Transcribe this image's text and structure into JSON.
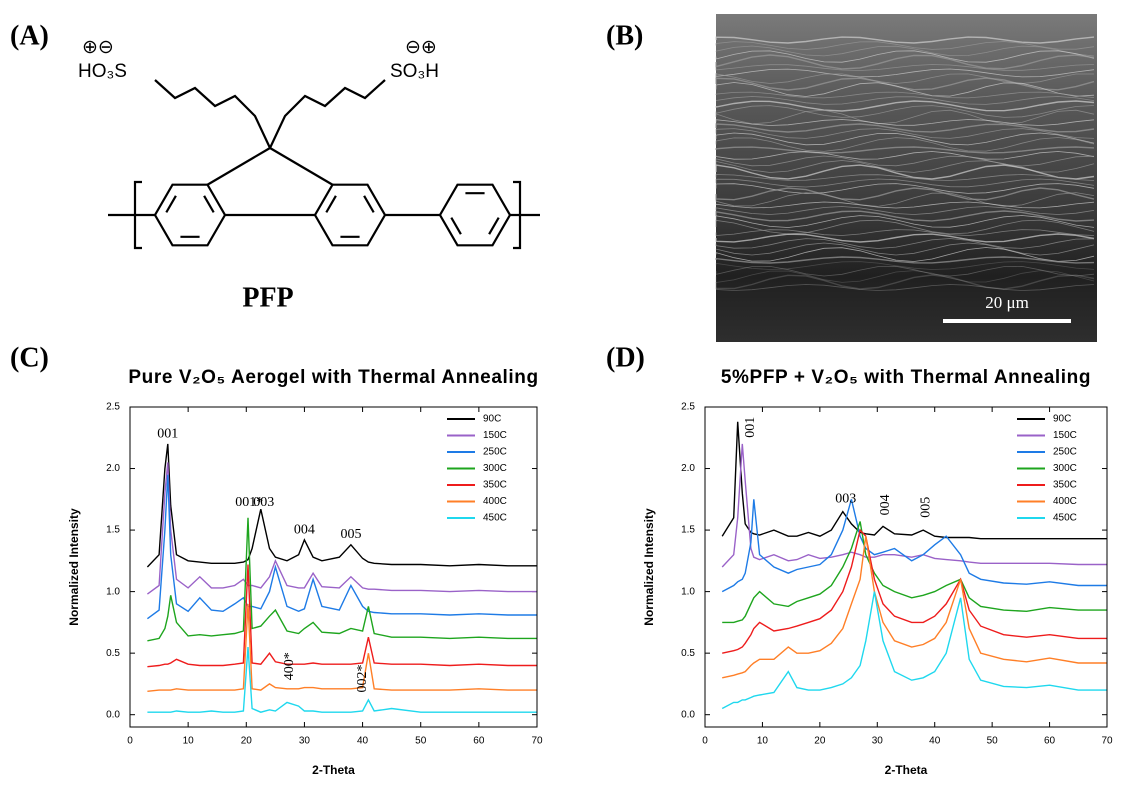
{
  "labels": {
    "a": "(A)",
    "b": "(B)",
    "c": "(C)",
    "d": "(D)"
  },
  "structure": {
    "left_charges": "⊕⊖",
    "left_group": "HO₃S",
    "right_charges": "⊖⊕",
    "right_group": "SO₃H",
    "name": "PFP"
  },
  "micrograph": {
    "scale_bar": "20 μm"
  },
  "chart_data": [
    {
      "type": "line",
      "title": "Pure V₂O₅ Aerogel with Thermal Annealing",
      "x_label": "2-Theta",
      "y_label": "Normalized Intensity",
      "x": [
        3,
        5,
        6,
        6.5,
        7,
        8,
        10,
        12,
        14,
        16,
        18,
        19.5,
        20.3,
        21,
        22.5,
        24,
        25,
        27,
        29,
        30,
        31.5,
        33,
        36,
        38,
        40,
        41,
        42,
        45,
        50,
        55,
        60,
        65,
        70
      ],
      "series": [
        {
          "name": "90C",
          "color": "#000000",
          "values": [
            1.2,
            1.3,
            2.0,
            2.2,
            1.7,
            1.3,
            1.25,
            1.24,
            1.23,
            1.23,
            1.23,
            1.24,
            1.26,
            1.35,
            1.67,
            1.35,
            1.28,
            1.25,
            1.3,
            1.42,
            1.28,
            1.25,
            1.28,
            1.38,
            1.27,
            1.24,
            1.23,
            1.22,
            1.22,
            1.21,
            1.22,
            1.21,
            1.21
          ]
        },
        {
          "name": "150C",
          "color": "#9a62c8",
          "values": [
            0.98,
            1.05,
            1.8,
            2.05,
            1.5,
            1.1,
            1.03,
            1.12,
            1.03,
            1.03,
            1.05,
            1.1,
            1.05,
            1.05,
            1.03,
            1.12,
            1.25,
            1.05,
            1.03,
            1.03,
            1.15,
            1.04,
            1.03,
            1.12,
            1.03,
            1.02,
            1.02,
            1.01,
            1.01,
            1.0,
            1.01,
            1.0,
            1.0
          ]
        },
        {
          "name": "250C",
          "color": "#1e7be6",
          "values": [
            0.78,
            0.85,
            1.5,
            1.95,
            1.3,
            0.9,
            0.84,
            0.95,
            0.85,
            0.84,
            0.9,
            0.95,
            0.88,
            0.88,
            0.86,
            1.0,
            1.2,
            0.88,
            0.84,
            0.86,
            1.1,
            0.88,
            0.85,
            1.05,
            0.88,
            0.84,
            0.83,
            0.82,
            0.82,
            0.81,
            0.82,
            0.81,
            0.81
          ]
        },
        {
          "name": "300C",
          "color": "#1ea51e",
          "values": [
            0.6,
            0.62,
            0.7,
            0.8,
            0.97,
            0.75,
            0.64,
            0.65,
            0.64,
            0.65,
            0.66,
            0.68,
            1.6,
            0.7,
            0.72,
            0.8,
            0.85,
            0.68,
            0.66,
            0.7,
            0.75,
            0.67,
            0.66,
            0.7,
            0.68,
            0.88,
            0.66,
            0.63,
            0.63,
            0.62,
            0.63,
            0.62,
            0.62
          ]
        },
        {
          "name": "350C",
          "color": "#ee1c1c",
          "values": [
            0.39,
            0.4,
            0.41,
            0.41,
            0.42,
            0.45,
            0.41,
            0.4,
            0.4,
            0.4,
            0.41,
            0.42,
            1.22,
            0.42,
            0.41,
            0.5,
            0.43,
            0.41,
            0.41,
            0.41,
            0.42,
            0.41,
            0.41,
            0.41,
            0.42,
            0.63,
            0.42,
            0.41,
            0.41,
            0.4,
            0.41,
            0.4,
            0.4
          ]
        },
        {
          "name": "400C",
          "color": "#ff7f27",
          "values": [
            0.19,
            0.2,
            0.2,
            0.2,
            0.2,
            0.21,
            0.2,
            0.2,
            0.2,
            0.2,
            0.2,
            0.21,
            0.9,
            0.21,
            0.2,
            0.25,
            0.22,
            0.21,
            0.21,
            0.22,
            0.22,
            0.21,
            0.21,
            0.21,
            0.22,
            0.5,
            0.21,
            0.2,
            0.2,
            0.2,
            0.21,
            0.2,
            0.2
          ]
        },
        {
          "name": "450C",
          "color": "#1fd8ee",
          "values": [
            0.02,
            0.02,
            0.02,
            0.02,
            0.02,
            0.03,
            0.02,
            0.02,
            0.03,
            0.02,
            0.02,
            0.03,
            0.55,
            0.05,
            0.02,
            0.04,
            0.03,
            0.1,
            0.07,
            0.03,
            0.03,
            0.02,
            0.02,
            0.02,
            0.03,
            0.12,
            0.03,
            0.05,
            0.02,
            0.02,
            0.02,
            0.02,
            0.02
          ]
        }
      ],
      "xlim": [
        0,
        70
      ],
      "ylim": [
        -0.1,
        2.5
      ],
      "xticks": [
        0,
        10,
        20,
        30,
        40,
        50,
        60,
        70
      ],
      "yticks": [
        {
          "value": 0,
          "label": "0.0"
        },
        {
          "value": 0.5,
          "label": "0.5"
        },
        {
          "value": 1,
          "label": "1.0"
        },
        {
          "value": 1.5,
          "label": "1.5"
        },
        {
          "value": 2,
          "label": "2.0"
        },
        {
          "value": 2.5,
          "label": "2.5"
        }
      ],
      "legend": "upper right",
      "annotations": [
        {
          "text": "001",
          "x": 6.5,
          "y": 2.28
        },
        {
          "text": "001*",
          "x": 20.5,
          "y": 1.72
        },
        {
          "text": "003",
          "x": 23,
          "y": 1.72
        },
        {
          "text": "004",
          "x": 30,
          "y": 1.5
        },
        {
          "text": "005",
          "x": 38,
          "y": 1.46
        },
        {
          "text": "400*",
          "x": 27.5,
          "y": 0.28,
          "vertical": true
        },
        {
          "text": "002*",
          "x": 40,
          "y": 0.18,
          "vertical": true
        }
      ]
    },
    {
      "type": "line",
      "title": "5%PFP + V₂O₅ with Thermal Annealing",
      "x_label": "2-Theta",
      "y_label": "Normalized Intensity",
      "x": [
        3,
        5,
        5.7,
        6.5,
        7,
        8,
        8.5,
        9.5,
        12,
        14.5,
        16,
        18,
        20,
        22,
        24,
        25.5,
        27,
        28,
        29.5,
        31,
        33,
        36,
        38,
        40,
        42,
        44.5,
        46,
        48,
        52,
        56,
        60,
        65,
        70
      ],
      "series": [
        {
          "name": "90C",
          "color": "#000000",
          "values": [
            1.45,
            1.6,
            2.38,
            1.8,
            1.55,
            1.48,
            1.47,
            1.46,
            1.5,
            1.45,
            1.45,
            1.48,
            1.45,
            1.5,
            1.65,
            1.55,
            1.48,
            1.47,
            1.46,
            1.53,
            1.47,
            1.46,
            1.5,
            1.45,
            1.44,
            1.44,
            1.44,
            1.43,
            1.43,
            1.43,
            1.43,
            1.43,
            1.43
          ]
        },
        {
          "name": "150C",
          "color": "#9a62c8",
          "values": [
            1.2,
            1.3,
            1.6,
            2.2,
            1.9,
            1.35,
            1.28,
            1.26,
            1.3,
            1.25,
            1.26,
            1.3,
            1.27,
            1.28,
            1.3,
            1.32,
            1.3,
            1.28,
            1.28,
            1.3,
            1.3,
            1.28,
            1.3,
            1.27,
            1.26,
            1.25,
            1.24,
            1.23,
            1.23,
            1.23,
            1.23,
            1.22,
            1.22
          ]
        },
        {
          "name": "250C",
          "color": "#1e7be6",
          "values": [
            1.0,
            1.05,
            1.08,
            1.1,
            1.15,
            1.4,
            1.75,
            1.3,
            1.2,
            1.15,
            1.18,
            1.2,
            1.22,
            1.3,
            1.5,
            1.75,
            1.45,
            1.35,
            1.3,
            1.32,
            1.35,
            1.25,
            1.3,
            1.38,
            1.45,
            1.3,
            1.15,
            1.1,
            1.07,
            1.06,
            1.08,
            1.05,
            1.05
          ]
        },
        {
          "name": "300C",
          "color": "#1ea51e",
          "values": [
            0.75,
            0.75,
            0.76,
            0.77,
            0.8,
            0.9,
            0.95,
            1.0,
            0.9,
            0.88,
            0.92,
            0.95,
            0.98,
            1.05,
            1.2,
            1.35,
            1.57,
            1.3,
            1.15,
            1.05,
            1.0,
            0.95,
            0.97,
            1.0,
            1.05,
            1.1,
            0.95,
            0.88,
            0.85,
            0.84,
            0.87,
            0.85,
            0.85
          ]
        },
        {
          "name": "350C",
          "color": "#ee1c1c",
          "values": [
            0.5,
            0.52,
            0.53,
            0.55,
            0.58,
            0.65,
            0.7,
            0.75,
            0.68,
            0.7,
            0.72,
            0.75,
            0.78,
            0.85,
            1.0,
            1.2,
            1.5,
            1.45,
            1.1,
            0.9,
            0.8,
            0.75,
            0.75,
            0.8,
            0.9,
            1.1,
            0.85,
            0.72,
            0.65,
            0.63,
            0.65,
            0.62,
            0.62
          ]
        },
        {
          "name": "400C",
          "color": "#ff7f27",
          "values": [
            0.3,
            0.32,
            0.33,
            0.34,
            0.35,
            0.4,
            0.42,
            0.45,
            0.45,
            0.55,
            0.5,
            0.5,
            0.52,
            0.58,
            0.7,
            0.9,
            1.1,
            1.45,
            1.0,
            0.75,
            0.6,
            0.55,
            0.57,
            0.62,
            0.75,
            1.1,
            0.7,
            0.5,
            0.45,
            0.43,
            0.46,
            0.42,
            0.42
          ]
        },
        {
          "name": "450C",
          "color": "#1fd8ee",
          "values": [
            0.05,
            0.1,
            0.1,
            0.12,
            0.12,
            0.14,
            0.15,
            0.16,
            0.18,
            0.35,
            0.22,
            0.2,
            0.2,
            0.22,
            0.25,
            0.3,
            0.4,
            0.6,
            1.0,
            0.6,
            0.35,
            0.28,
            0.3,
            0.35,
            0.5,
            0.95,
            0.45,
            0.28,
            0.23,
            0.22,
            0.24,
            0.2,
            0.2
          ]
        }
      ],
      "xlim": [
        0,
        70
      ],
      "ylim": [
        -0.1,
        2.5
      ],
      "xticks": [
        0,
        10,
        20,
        30,
        40,
        50,
        60,
        70
      ],
      "yticks": [
        {
          "value": 0,
          "label": "0.0"
        },
        {
          "value": 0.5,
          "label": "0.5"
        },
        {
          "value": 1,
          "label": "1.0"
        },
        {
          "value": 1.5,
          "label": "1.5"
        },
        {
          "value": 2,
          "label": "2.0"
        },
        {
          "value": 2.5,
          "label": "2.5"
        }
      ],
      "legend": "upper right",
      "annotations": [
        {
          "text": "001",
          "x": 8,
          "y": 2.25,
          "vertical": true
        },
        {
          "text": "003",
          "x": 24.5,
          "y": 1.75
        },
        {
          "text": "004",
          "x": 31.5,
          "y": 1.62,
          "vertical": true
        },
        {
          "text": "005",
          "x": 38.5,
          "y": 1.6,
          "vertical": true
        }
      ]
    }
  ]
}
